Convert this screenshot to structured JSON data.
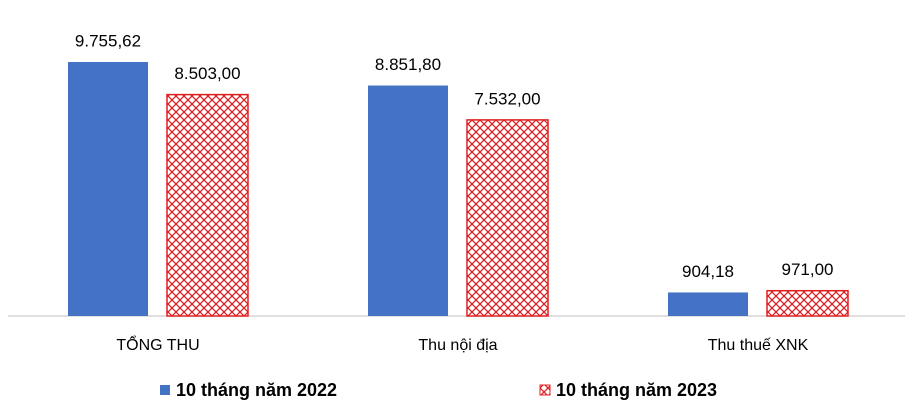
{
  "chart_data": {
    "type": "bar",
    "categories": [
      "TỔNG THU",
      "Thu nội địa",
      "Thu thuế XNK"
    ],
    "series": [
      {
        "name": "10 tháng năm 2022",
        "color": "#4472c4",
        "values": [
          9755.62,
          8851.8,
          904.18
        ],
        "value_labels": [
          "9.755,62",
          "8.851,80",
          "904,18"
        ]
      },
      {
        "name": "10 tháng năm 2023",
        "color": "#e02020",
        "values": [
          8503.0,
          7532.0,
          971.0
        ],
        "value_labels": [
          "8.503,00",
          "7.532,00",
          "971,00"
        ],
        "hatch": true
      }
    ]
  }
}
